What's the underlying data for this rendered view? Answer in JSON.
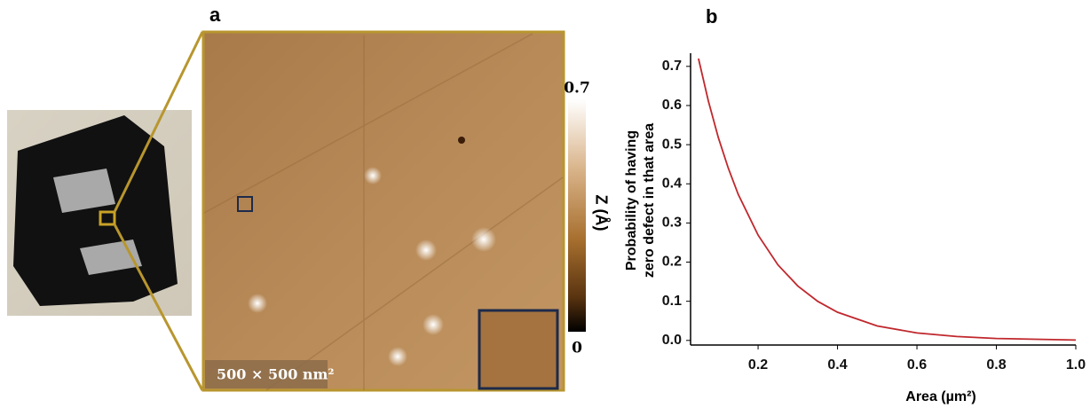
{
  "panel_a": {
    "label": "a",
    "colorbar": {
      "max_label": "0.7",
      "min_label": "0",
      "title": "Z (Å)"
    },
    "scale_label": "500 × 500 nm²"
  },
  "chart_data": {
    "type": "line",
    "panel_label": "b",
    "xlabel": "Area (µm²)",
    "ylabel": [
      "Probability of having",
      "zero defect in that area"
    ],
    "x": [
      0.05,
      0.075,
      0.1,
      0.125,
      0.15,
      0.2,
      0.25,
      0.3,
      0.35,
      0.4,
      0.5,
      0.6,
      0.7,
      0.8,
      0.9,
      1.0
    ],
    "values": [
      0.72,
      0.611,
      0.518,
      0.44,
      0.373,
      0.269,
      0.193,
      0.139,
      0.1,
      0.072,
      0.037,
      0.019,
      0.01,
      0.005,
      0.003,
      0.001
    ],
    "color": "#c0282d",
    "xlim": [
      0.03,
      1.0
    ],
    "xticks": [
      0.2,
      0.4,
      0.6,
      0.8,
      {
        "value": 1,
        "label": "1.0"
      }
    ],
    "ylim": [
      -0.005,
      0.72
    ],
    "yticks": [
      {
        "value": 0,
        "label": "0.0"
      },
      0.1,
      0.2,
      0.3,
      0.4,
      0.5,
      0.6,
      0.7
    ]
  }
}
